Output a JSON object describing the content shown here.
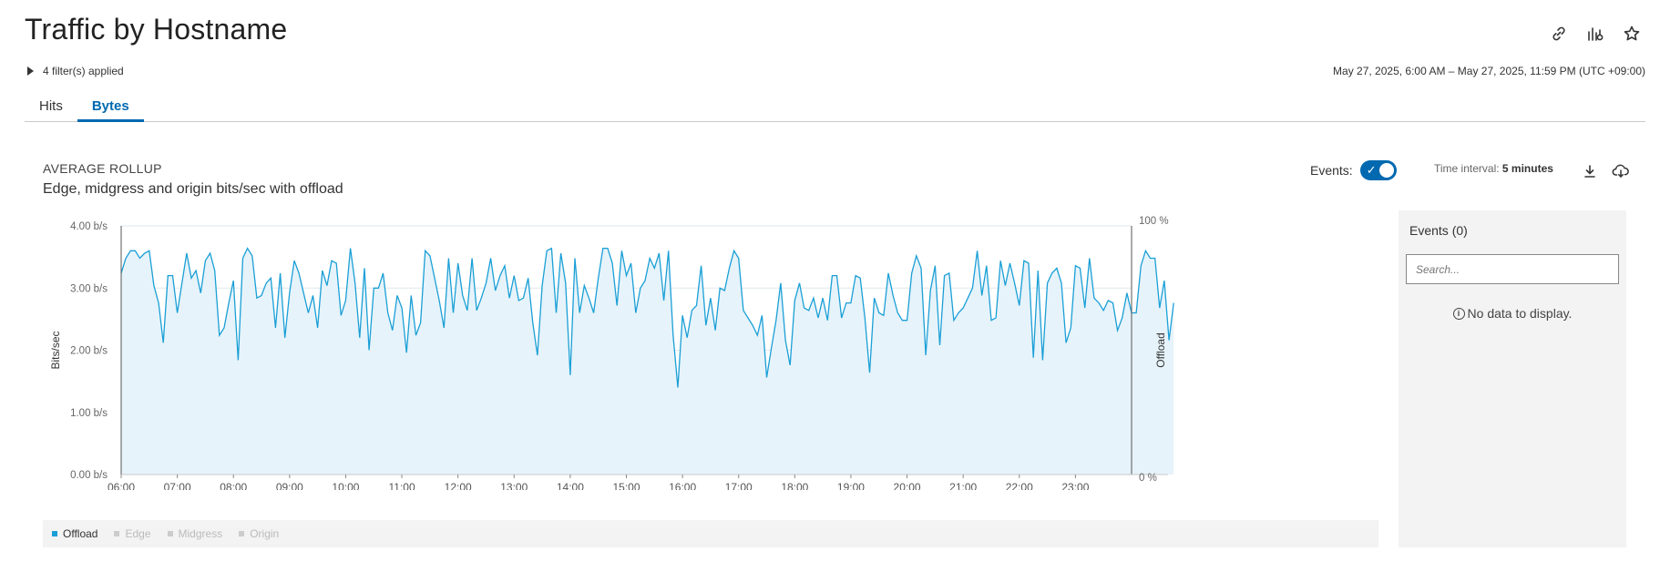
{
  "page": {
    "title": "Traffic by Hostname",
    "filters_label": "4 filter(s) applied",
    "date_range": "May 27, 2025, 6:00 AM – May 27, 2025, 11:59 PM (UTC +09:00)"
  },
  "header_icons": [
    "link-icon",
    "chart-settings-icon",
    "star-icon"
  ],
  "tabs": [
    {
      "label": "Hits",
      "active": false
    },
    {
      "label": "Bytes",
      "active": true
    }
  ],
  "chart_header": {
    "rollup": "AVERAGE ROLLUP",
    "subtitle": "Edge, midgress and origin bits/sec with offload",
    "events_label": "Events:",
    "events_enabled": true,
    "interval_label": "Time interval:",
    "interval_value": "5 minutes"
  },
  "tool_icons": [
    "download-icon",
    "cloud-download-icon"
  ],
  "events_panel": {
    "title": "Events (0)",
    "search_placeholder": "Search...",
    "empty_text": "No data to display."
  },
  "colors": {
    "accent": "#0069b0",
    "series_line": "#1a9fd6",
    "series_fill": "#e6f3fa",
    "grid": "#dfe7ec"
  },
  "chart_data": {
    "type": "area",
    "y_left": {
      "label": "Bits/sec",
      "ticks": [
        "0.00 b/s",
        "1.00 b/s",
        "2.00 b/s",
        "3.00 b/s",
        "4.00 b/s"
      ],
      "ylim": [
        0,
        4
      ]
    },
    "y_right": {
      "label": "Offload",
      "ticks": [
        "0 %",
        "100 %"
      ],
      "ylim": [
        0,
        100
      ]
    },
    "x_ticks": [
      "06:00",
      "07:00",
      "08:00",
      "09:00",
      "10:00",
      "11:00",
      "12:00",
      "13:00",
      "14:00",
      "15:00",
      "16:00",
      "17:00",
      "18:00",
      "19:00",
      "20:00",
      "21:00",
      "22:00",
      "23:00"
    ],
    "x_range_hours": [
      6,
      24
    ],
    "grid": true,
    "legend": [
      {
        "name": "Offload",
        "enabled": true,
        "color": "#1a9fd6"
      },
      {
        "name": "Edge",
        "enabled": false,
        "color": "#cccccc"
      },
      {
        "name": "Midgress",
        "enabled": false,
        "color": "#cccccc"
      },
      {
        "name": "Origin",
        "enabled": false,
        "color": "#cccccc"
      }
    ],
    "series": [
      {
        "name": "Offload",
        "unit": "%",
        "start_hour": 6,
        "step_minutes": 5,
        "values": [
          81,
          87,
          90,
          90,
          87,
          89,
          90,
          76,
          69,
          53,
          80,
          80,
          65,
          77,
          89,
          79,
          82,
          73,
          86,
          89,
          82,
          56,
          59,
          69,
          78,
          46,
          87,
          91,
          88,
          71,
          72,
          77,
          79,
          59,
          81,
          55,
          73,
          86,
          81,
          73,
          65,
          72,
          59,
          82,
          76,
          86,
          85,
          64,
          70,
          91,
          77,
          55,
          83,
          50,
          75,
          75,
          81,
          65,
          58,
          72,
          67,
          49,
          72,
          56,
          61,
          90,
          88,
          79,
          70,
          59,
          87,
          65,
          85,
          72,
          66,
          87,
          66,
          71,
          77,
          87,
          74,
          80,
          84,
          71,
          80,
          70,
          71,
          79,
          61,
          48,
          76,
          90,
          91,
          65,
          89,
          77,
          40,
          87,
          65,
          76,
          71,
          65,
          79,
          91,
          91,
          85,
          68,
          90,
          80,
          85,
          65,
          75,
          78,
          87,
          83,
          89,
          70,
          90,
          56,
          35,
          64,
          55,
          66,
          68,
          84,
          60,
          71,
          58,
          75,
          74,
          83,
          90,
          87,
          66,
          63,
          60,
          56,
          64,
          39,
          51,
          62,
          77,
          54,
          44,
          70,
          77,
          67,
          66,
          71,
          63,
          71,
          62,
          80,
          80,
          63,
          69,
          69,
          80,
          79,
          63,
          41,
          71,
          65,
          64,
          81,
          72,
          65,
          62,
          62,
          81,
          88,
          83,
          48,
          74,
          84,
          52,
          80,
          81,
          62,
          65,
          67,
          71,
          75,
          90,
          72,
          84,
          62,
          63,
          86,
          76,
          85,
          77,
          68,
          86,
          85,
          47,
          82,
          46,
          77,
          81,
          83,
          77,
          53,
          59,
          84,
          83,
          67,
          87,
          71,
          69,
          66,
          70,
          69,
          58,
          63,
          73,
          65,
          65,
          84,
          90,
          87,
          87,
          67,
          78,
          54,
          69
        ]
      }
    ]
  }
}
